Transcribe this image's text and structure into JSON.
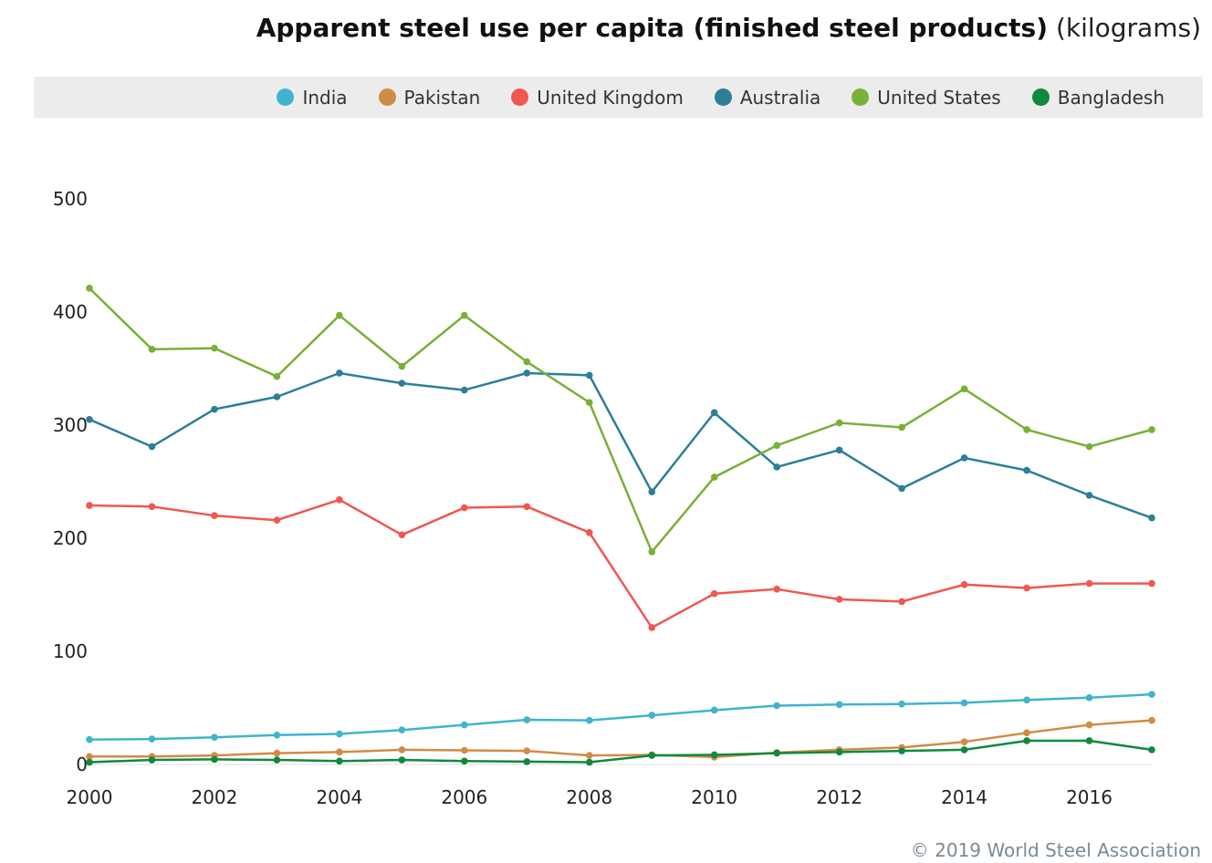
{
  "title": {
    "main": "Apparent steel use per capita (finished steel products)",
    "unit": "(kilograms)"
  },
  "copyright": "© 2019 World Steel Association",
  "chart_data": {
    "type": "line",
    "title": "Apparent steel use per capita (finished steel products) (kilograms)",
    "xlabel": "",
    "ylabel": "",
    "x": [
      2000,
      2001,
      2002,
      2003,
      2004,
      2005,
      2006,
      2007,
      2008,
      2009,
      2010,
      2011,
      2012,
      2013,
      2014,
      2015,
      2016,
      2017
    ],
    "xticks": [
      "2000",
      "2002",
      "2004",
      "2006",
      "2008",
      "2010",
      "2012",
      "2014",
      "2016"
    ],
    "yticks": [
      "0",
      "100",
      "200",
      "300",
      "400",
      "500"
    ],
    "xlim": [
      2000,
      2017.4
    ],
    "ylim": [
      0,
      500
    ],
    "grid": false,
    "legend_position": "top",
    "series": [
      {
        "name": "India",
        "color": "#40b4cc",
        "values": [
          22,
          22.5,
          24,
          26,
          27,
          30.5,
          35,
          39.5,
          39,
          43.5,
          48,
          52,
          53,
          53.5,
          54.5,
          57,
          59,
          62
        ]
      },
      {
        "name": "Pakistan",
        "color": "#d08c44",
        "values": [
          7,
          7,
          8,
          10,
          11,
          13,
          12.5,
          12,
          8,
          8.5,
          6.5,
          10.5,
          13,
          15,
          20,
          28,
          35,
          39
        ]
      },
      {
        "name": "United Kingdom",
        "color": "#f0574e",
        "values": [
          229,
          228,
          220,
          216,
          234,
          203,
          227,
          228,
          205,
          121,
          151,
          155,
          146,
          144,
          159,
          156,
          160,
          160
        ]
      },
      {
        "name": "Australia",
        "color": "#2d7f98",
        "values": [
          305,
          281,
          314,
          325,
          346,
          337,
          331,
          346,
          344,
          241,
          311,
          263,
          278,
          244,
          271,
          260,
          238,
          218
        ]
      },
      {
        "name": "United States",
        "color": "#78b038",
        "values": [
          421,
          367,
          368,
          343,
          397,
          352,
          397,
          356,
          320,
          188,
          254,
          282,
          302,
          298,
          332,
          296,
          281,
          296
        ]
      },
      {
        "name": "Bangladesh",
        "color": "#10893e",
        "values": [
          2,
          4,
          4.5,
          4,
          3,
          4,
          3,
          2.5,
          2,
          8,
          8.5,
          10,
          11,
          12,
          13,
          21,
          21,
          13
        ]
      }
    ]
  }
}
